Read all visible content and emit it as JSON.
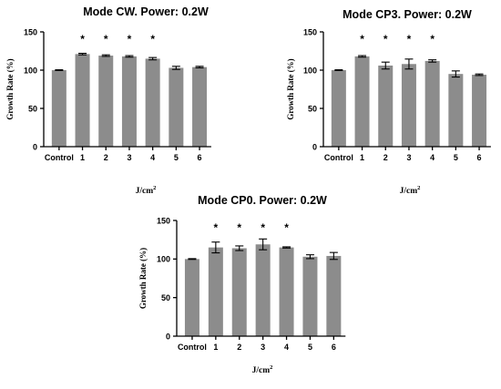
{
  "units": {
    "base": "J/cm",
    "exp": "2"
  },
  "chart_data": [
    {
      "type": "bar",
      "title": "Mode CW. Power: 0.2W",
      "ylabel": "Growth Rate (%)",
      "xlabel": "J/cm2",
      "categories": [
        "Control",
        "1",
        "2",
        "3",
        "4",
        "5",
        "6"
      ],
      "values": [
        100,
        121,
        119,
        118,
        115,
        103,
        104
      ],
      "errors": [
        0.5,
        1.0,
        1.0,
        1.0,
        1.5,
        2.0,
        1.0
      ],
      "significant": [
        false,
        true,
        true,
        true,
        true,
        false,
        false
      ],
      "significance_marker": "*",
      "ylim": [
        0,
        150
      ],
      "yticks": [
        0,
        50,
        100,
        150
      ],
      "bar_color": "#8c8c8c",
      "legend": "none",
      "grid": false
    },
    {
      "type": "bar",
      "title": "Mode CP3. Power: 0.2W",
      "ylabel": "Growth Rate (%)",
      "xlabel": "J/cm2",
      "categories": [
        "Control",
        "1",
        "2",
        "3",
        "4",
        "5",
        "6"
      ],
      "values": [
        100,
        118,
        106,
        108,
        112,
        95,
        94
      ],
      "errors": [
        0.5,
        1.0,
        4.5,
        6.5,
        1.5,
        4.0,
        1.0
      ],
      "significant": [
        false,
        true,
        true,
        true,
        true,
        false,
        false
      ],
      "significance_marker": "*",
      "ylim": [
        0,
        150
      ],
      "yticks": [
        0,
        50,
        100,
        150
      ],
      "bar_color": "#8c8c8c",
      "legend": "none",
      "grid": false
    },
    {
      "type": "bar",
      "title": "Mode CP0. Power: 0.2W",
      "ylabel": "Growth Rate (%)",
      "xlabel": "J/cm2",
      "categories": [
        "Control",
        "1",
        "2",
        "3",
        "4",
        "5",
        "6"
      ],
      "values": [
        100,
        115,
        114,
        119,
        115,
        103,
        104
      ],
      "errors": [
        0.5,
        7.0,
        3.0,
        7.0,
        0.8,
        2.5,
        4.5
      ],
      "significant": [
        false,
        true,
        true,
        true,
        true,
        false,
        false
      ],
      "significance_marker": "*",
      "ylim": [
        0,
        150
      ],
      "yticks": [
        0,
        50,
        100,
        150
      ],
      "bar_color": "#8c8c8c",
      "legend": "none",
      "grid": false
    }
  ]
}
